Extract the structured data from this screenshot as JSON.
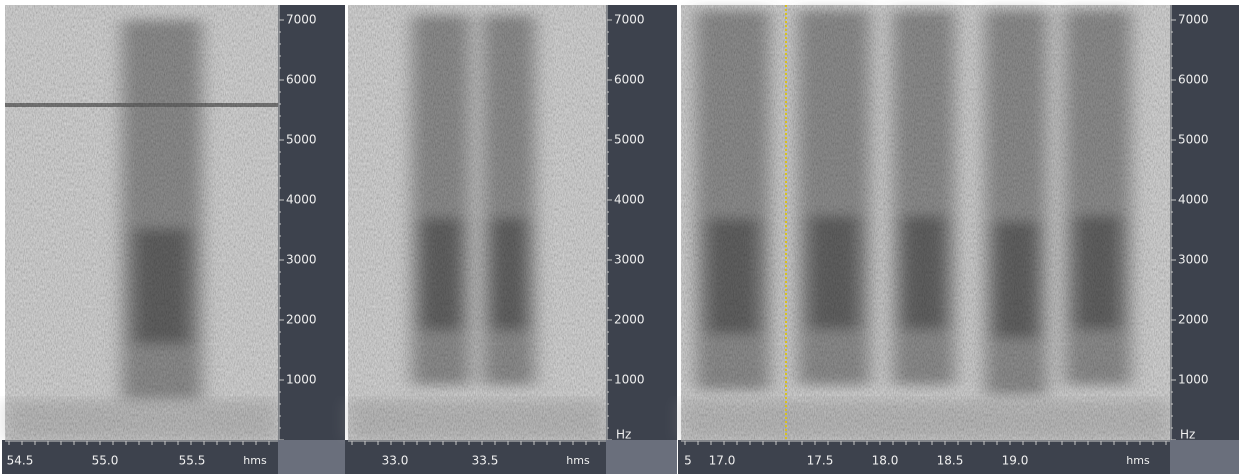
{
  "panels": [
    {
      "y_labels": [
        "7000",
        "6000",
        "5000",
        "4000",
        "3000",
        "2000",
        "1000"
      ],
      "x_labels": [
        "54.5",
        "55.0",
        "55.5"
      ],
      "x_unit": "hms"
    },
    {
      "y_labels": [
        "7000",
        "6000",
        "5000",
        "4000",
        "3000",
        "2000",
        "1000"
      ],
      "y_unit": "Hz",
      "x_labels": [
        "33.0",
        "33.5"
      ],
      "x_unit": "hms"
    },
    {
      "y_labels": [
        "7000",
        "6000",
        "5000",
        "4000",
        "3000",
        "2000",
        "1000"
      ],
      "y_unit": "Hz",
      "x_labels": [
        "5",
        "17.0",
        "17.5",
        "18.0",
        "18.5",
        "19.0"
      ],
      "x_unit": "hms"
    }
  ]
}
